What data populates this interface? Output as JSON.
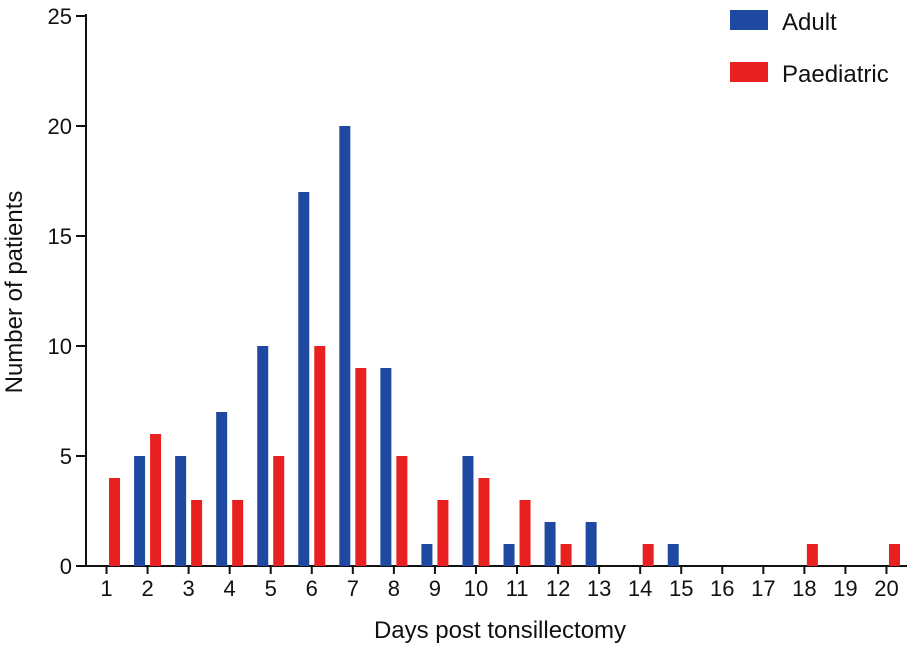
{
  "chart_data": {
    "type": "bar",
    "title": "",
    "xlabel": "Days post tonsillectomy",
    "ylabel": "Number of patients",
    "categories": [
      "1",
      "2",
      "3",
      "4",
      "5",
      "6",
      "7",
      "8",
      "9",
      "10",
      "11",
      "12",
      "13",
      "14",
      "15",
      "16",
      "17",
      "18",
      "19",
      "20"
    ],
    "ylim": [
      0,
      25
    ],
    "yticks": [
      0,
      5,
      10,
      15,
      20,
      25
    ],
    "grid": false,
    "legend_position": "top-right",
    "series": [
      {
        "name": "Adult",
        "color": "#1f48a0",
        "values": [
          0,
          5,
          5,
          7,
          10,
          17,
          20,
          9,
          1,
          5,
          1,
          2,
          2,
          0,
          1,
          0,
          0,
          0,
          0,
          0
        ]
      },
      {
        "name": "Paediatric",
        "color": "#e82020",
        "values": [
          4,
          6,
          3,
          3,
          5,
          10,
          9,
          5,
          3,
          4,
          3,
          1,
          0,
          1,
          0,
          0,
          0,
          1,
          0,
          1
        ]
      }
    ]
  }
}
